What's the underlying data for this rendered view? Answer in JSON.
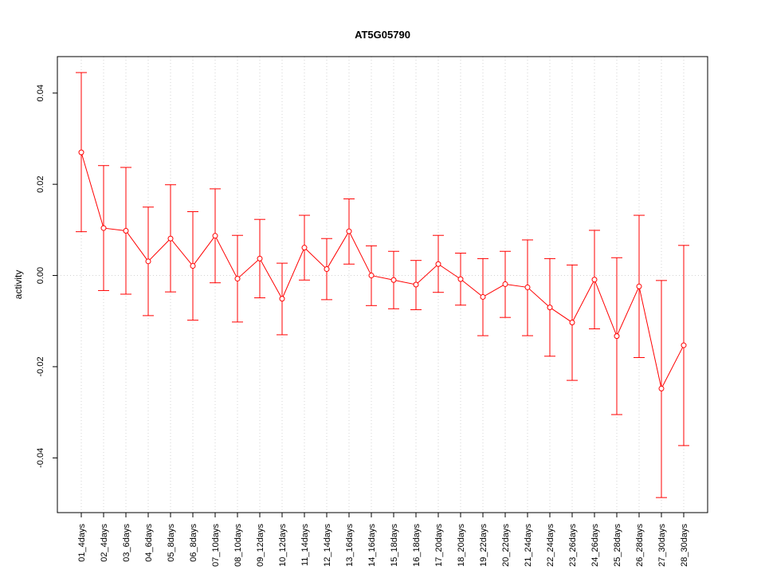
{
  "chart_data": {
    "type": "line",
    "title": "AT5G05790",
    "xlabel": "",
    "ylabel": "activity",
    "ylim": [
      -0.052,
      0.048
    ],
    "yticks": [
      -0.04,
      -0.02,
      0.0,
      0.02,
      0.04
    ],
    "ytick_labels": [
      "-0.04",
      "-0.02",
      "0.00",
      "0.02",
      "0.04"
    ],
    "grid": true,
    "color": "#ff0000",
    "grid_color": "#d3d3d3",
    "categories": [
      "01_4days",
      "02_4days",
      "03_6days",
      "04_6days",
      "05_8days",
      "06_8days",
      "07_10days",
      "08_10days",
      "09_12days",
      "10_12days",
      "11_14days",
      "12_14days",
      "13_16days",
      "14_16days",
      "15_18days",
      "16_18days",
      "17_20days",
      "18_20days",
      "19_22days",
      "20_22days",
      "21_24days",
      "22_24days",
      "23_26days",
      "24_26days",
      "25_28days",
      "26_28days",
      "27_30days",
      "28_30days"
    ],
    "series": [
      {
        "values": [
          0.027,
          0.0104,
          0.0098,
          0.0031,
          0.0081,
          0.0021,
          0.0087,
          -0.0007,
          0.0037,
          -0.0051,
          0.0061,
          0.0014,
          0.0097,
          0.0,
          -0.001,
          -0.002,
          0.0025,
          -0.0008,
          -0.0047,
          -0.0019,
          -0.0026,
          -0.007,
          -0.0103,
          -0.0009,
          -0.0133,
          -0.0024,
          -0.0248,
          -0.0153
        ],
        "upper": [
          0.0445,
          0.0241,
          0.0237,
          0.015,
          0.0199,
          0.014,
          0.019,
          0.0088,
          0.0123,
          0.0027,
          0.0132,
          0.0081,
          0.0168,
          0.0065,
          0.0053,
          0.0033,
          0.0088,
          0.0049,
          0.0037,
          0.0053,
          0.0078,
          0.0037,
          0.0023,
          0.0099,
          0.0039,
          0.0132,
          -0.0011,
          0.0066
        ],
        "lower": [
          0.0096,
          -0.0033,
          -0.0041,
          -0.0088,
          -0.0036,
          -0.0098,
          -0.0016,
          -0.0102,
          -0.0049,
          -0.013,
          -0.001,
          -0.0053,
          0.0025,
          -0.0066,
          -0.0073,
          -0.0075,
          -0.0037,
          -0.0065,
          -0.0132,
          -0.0092,
          -0.0132,
          -0.0177,
          -0.023,
          -0.0117,
          -0.0305,
          -0.018,
          -0.0487,
          -0.0373
        ]
      }
    ]
  }
}
